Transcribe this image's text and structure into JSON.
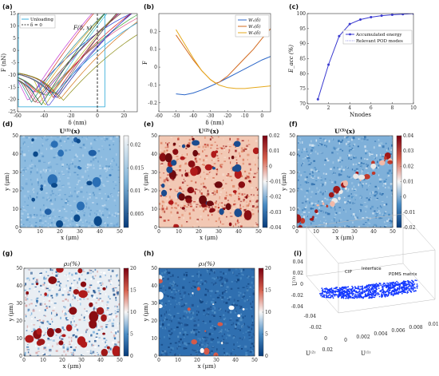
{
  "panel_labels": [
    "(a)",
    "(b)",
    "(c)",
    "(d)",
    "(e)",
    "(f)",
    "(g)",
    "(h)",
    "(i)"
  ],
  "colors": {
    "blue": "#2b66c8",
    "orange": "#d2691e",
    "gold": "#e6a91c",
    "accum": "#3a3ad0",
    "cmap_low": "#053a7a",
    "cmap_mid": "#f7f7f7",
    "cmap_high": "#7a0010",
    "scatter": "#1438ff"
  },
  "chart_data": [
    {
      "id": "a",
      "type": "line",
      "xlabel": "δ (nm)",
      "ylabel": "F (nN)",
      "xlim": [
        -60,
        30
      ],
      "ylim": [
        -25,
        15
      ],
      "xticks": [
        -60,
        -40,
        -20,
        0,
        20
      ],
      "yticks": [
        -25,
        -20,
        -15,
        -10,
        -5,
        0,
        5,
        10,
        15
      ],
      "legend": [
        "Unloading",
        "δ = 0"
      ],
      "annotation": "F(δ, x)",
      "vline_x": 0,
      "curve_count": 20
    },
    {
      "id": "b",
      "type": "line",
      "xlabel": "δ (nm)",
      "ylabel": "F",
      "xlim": [
        -60,
        5
      ],
      "ylim": [
        -0.25,
        0.3
      ],
      "xticks": [
        -60,
        -50,
        -40,
        -30,
        -20,
        -10,
        0
      ],
      "yticks": [
        -0.2,
        -0.1,
        0,
        0.1,
        0.2
      ],
      "ytick_labels": [
        "-0.2",
        "-0.1",
        "0",
        "0.1",
        "0.2"
      ],
      "legend_position": "top-right",
      "series": [
        {
          "name": "W₁(δ)",
          "color": "#2b66c8",
          "x": [
            -50,
            -45,
            -40,
            -35,
            -30,
            -25,
            -20,
            -15,
            -10,
            -5,
            0,
            5
          ],
          "y": [
            -0.15,
            -0.155,
            -0.145,
            -0.128,
            -0.107,
            -0.085,
            -0.06,
            -0.035,
            -0.01,
            0.015,
            0.04,
            0.06
          ]
        },
        {
          "name": "W₂(δ)",
          "color": "#d2691e",
          "x": [
            -50,
            -45,
            -40,
            -35,
            -30,
            -27,
            -25,
            -20,
            -15,
            -10,
            -5,
            0,
            5
          ],
          "y": [
            0.18,
            0.11,
            0.04,
            -0.02,
            -0.07,
            -0.09,
            -0.085,
            -0.05,
            0.0,
            0.05,
            0.1,
            0.16,
            0.215
          ]
        },
        {
          "name": "W₃(δ)",
          "color": "#e6a91c",
          "x": [
            -50,
            -45,
            -40,
            -35,
            -30,
            -25,
            -20,
            -15,
            -10,
            -5,
            0,
            5
          ],
          "y": [
            0.21,
            0.13,
            0.05,
            -0.02,
            -0.07,
            -0.1,
            -0.115,
            -0.12,
            -0.12,
            -0.115,
            -0.11,
            -0.105
          ]
        }
      ]
    },
    {
      "id": "c",
      "type": "line",
      "xlabel": "Nnodes",
      "ylabel": "E_acc (%)",
      "xlim": [
        0,
        10
      ],
      "ylim": [
        70,
        100
      ],
      "xticks": [
        0,
        2,
        4,
        6,
        8,
        10
      ],
      "yticks": [
        70,
        75,
        80,
        85,
        90,
        95,
        100
      ],
      "legend_position": "bottom-right",
      "series": [
        {
          "name": "Accumulated energy",
          "color": "#3a3ad0",
          "x": [
            1,
            2,
            3,
            4,
            5,
            6,
            7,
            8,
            9,
            10
          ],
          "y": [
            71.5,
            83,
            92.5,
            96.5,
            98,
            98.8,
            99.3,
            99.6,
            99.8,
            100
          ]
        },
        {
          "name": "Relevant POD modes",
          "color": "#3a3ad0",
          "x": [],
          "y": []
        }
      ]
    },
    {
      "id": "d",
      "type": "heatmap",
      "title": "U⁽¹⁾(x)",
      "xlabel": "x (μm)",
      "ylabel": "y (μm)",
      "xticks": [
        0,
        10,
        20,
        30,
        40,
        50
      ],
      "yticks": [
        0,
        10,
        20,
        30,
        40,
        50
      ],
      "colorbar": [
        0.005,
        0.01,
        0.015,
        0.02
      ],
      "colorbar_labels": [
        "0.005",
        "0.01",
        "0.015",
        "0.02"
      ],
      "clim": [
        0.002,
        0.022
      ]
    },
    {
      "id": "e",
      "type": "heatmap",
      "title": "U⁽²⁾(x)",
      "xlabel": "x (μm)",
      "ylabel": "y (μm)",
      "xticks": [
        0,
        10,
        20,
        30,
        40,
        50
      ],
      "yticks": [
        0,
        10,
        20,
        30,
        40,
        50
      ],
      "colorbar": [
        -0.04,
        -0.03,
        -0.02,
        -0.01,
        0,
        0.01,
        0.02
      ],
      "colorbar_labels": [
        "-0.04",
        "-0.03",
        "-0.02",
        "-0.01",
        "0",
        "0.01",
        "0.02"
      ],
      "clim": [
        -0.04,
        0.02
      ]
    },
    {
      "id": "f",
      "type": "heatmap",
      "title": "U⁽³⁾(x)",
      "xlabel": "x (μm)",
      "ylabel": "y (μm)",
      "xticks": [
        0,
        10,
        20,
        30,
        40,
        50
      ],
      "yticks": [
        0,
        10,
        20,
        30,
        40,
        50
      ],
      "colorbar": [
        -0.02,
        -0.01,
        0,
        0.01,
        0.02,
        0.03,
        0.04
      ],
      "colorbar_labels": [
        "-0.02",
        "-0.01",
        "0",
        "0.01",
        "0.02",
        "0.03",
        "0.04"
      ],
      "clim": [
        -0.02,
        0.04
      ]
    },
    {
      "id": "g",
      "type": "heatmap",
      "title": "ρ₂(%)",
      "xlabel": "x (μm)",
      "ylabel": "y (μm)",
      "xticks": [
        0,
        10,
        20,
        30,
        40,
        50
      ],
      "yticks": [
        0,
        10,
        20,
        30,
        40,
        50
      ],
      "colorbar": [
        0,
        5,
        10,
        15,
        20
      ],
      "colorbar_labels": [
        "0",
        "5",
        "10",
        "15",
        "20"
      ],
      "clim": [
        0,
        20
      ]
    },
    {
      "id": "h",
      "type": "heatmap",
      "title": "ρ₃(%)",
      "xlabel": "x (μm)",
      "ylabel": "y (μm)",
      "xticks": [
        0,
        10,
        20,
        30,
        40,
        50
      ],
      "yticks": [
        0,
        10,
        20,
        30,
        40,
        50
      ],
      "colorbar": [
        0,
        5,
        10,
        15,
        20
      ],
      "colorbar_labels": [
        "0",
        "5",
        "10",
        "15",
        "20"
      ],
      "clim": [
        0,
        20
      ]
    },
    {
      "id": "i",
      "type": "scatter",
      "labels": {
        "x": "U⁽¹⁾",
        "y": "U⁽²⁾",
        "z": "U⁽³⁾"
      },
      "annotations": [
        "CIP",
        "Interface",
        "PDMS matrix"
      ],
      "zticks": [
        "-0.04",
        "-0.02",
        "0",
        "0.02",
        "0.04"
      ],
      "yticks": [
        "-0.04",
        "-0.02",
        "0",
        "0.02"
      ],
      "xticks": [
        "0",
        "0.002",
        "0.004",
        "0.006",
        "0.008",
        "0.01"
      ]
    }
  ]
}
